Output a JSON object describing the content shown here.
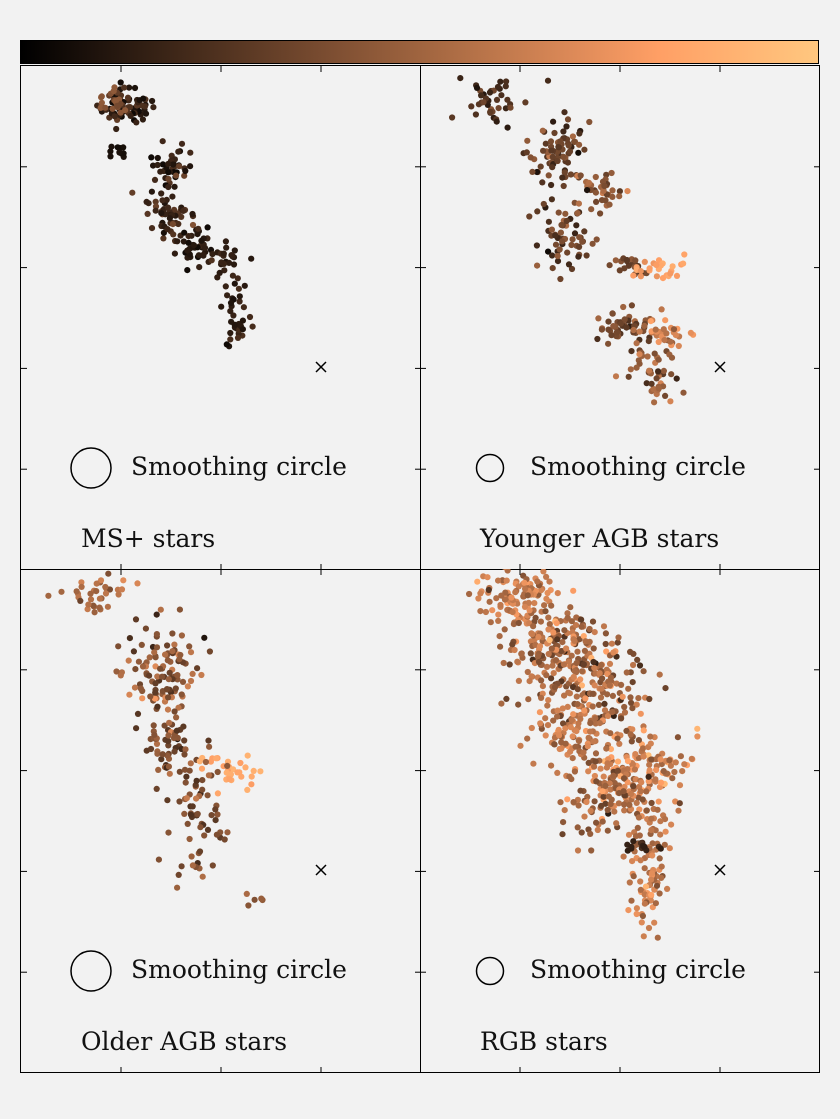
{
  "chart_data": {
    "type": "scatter",
    "colorbar": {
      "colormap": "copper",
      "orientation": "horizontal",
      "position": "top"
    },
    "grid": false,
    "panels": [
      {
        "label": "MS+ stars",
        "annotation": "Smoothing circle",
        "marker": "x",
        "smoothing_circle_size": "large",
        "color_range": [
          0.05,
          0.45
        ],
        "clumps": [
          {
            "cx": 0.26,
            "cy": 0.08,
            "sx": 0.035,
            "sy": 0.018,
            "n": 70,
            "c": 0.15,
            "cs": 0.15
          },
          {
            "cx": 0.23,
            "cy": 0.07,
            "sx": 0.02,
            "sy": 0.012,
            "n": 20,
            "c": 0.45,
            "cs": 0.15
          },
          {
            "cx": 0.24,
            "cy": 0.17,
            "sx": 0.015,
            "sy": 0.008,
            "n": 10,
            "c": 0.08,
            "cs": 0.05
          },
          {
            "cx": 0.38,
            "cy": 0.2,
            "sx": 0.025,
            "sy": 0.022,
            "n": 40,
            "c": 0.15,
            "cs": 0.15
          },
          {
            "cx": 0.38,
            "cy": 0.29,
            "sx": 0.03,
            "sy": 0.025,
            "n": 55,
            "c": 0.2,
            "cs": 0.15
          },
          {
            "cx": 0.43,
            "cy": 0.36,
            "sx": 0.025,
            "sy": 0.02,
            "n": 40,
            "c": 0.12,
            "cs": 0.1
          },
          {
            "cx": 0.51,
            "cy": 0.39,
            "sx": 0.02,
            "sy": 0.02,
            "n": 25,
            "c": 0.15,
            "cs": 0.1
          },
          {
            "cx": 0.53,
            "cy": 0.49,
            "sx": 0.02,
            "sy": 0.035,
            "n": 35,
            "c": 0.15,
            "cs": 0.1
          }
        ]
      },
      {
        "label": "Younger AGB stars",
        "annotation": "Smoothing circle",
        "marker": "x",
        "smoothing_circle_size": "small",
        "color_range": [
          0.05,
          0.9
        ],
        "clumps": [
          {
            "cx": 0.18,
            "cy": 0.08,
            "sx": 0.035,
            "sy": 0.022,
            "n": 40,
            "c": 0.25,
            "cs": 0.15
          },
          {
            "cx": 0.34,
            "cy": 0.17,
            "sx": 0.035,
            "sy": 0.035,
            "n": 80,
            "c": 0.3,
            "cs": 0.2
          },
          {
            "cx": 0.45,
            "cy": 0.25,
            "sx": 0.04,
            "sy": 0.02,
            "n": 40,
            "c": 0.45,
            "cs": 0.25
          },
          {
            "cx": 0.36,
            "cy": 0.34,
            "sx": 0.035,
            "sy": 0.035,
            "n": 60,
            "c": 0.3,
            "cs": 0.2
          },
          {
            "cx": 0.52,
            "cy": 0.4,
            "sx": 0.025,
            "sy": 0.01,
            "n": 20,
            "c": 0.3,
            "cs": 0.15
          },
          {
            "cx": 0.6,
            "cy": 0.4,
            "sx": 0.03,
            "sy": 0.012,
            "n": 25,
            "c": 0.8,
            "cs": 0.1
          },
          {
            "cx": 0.5,
            "cy": 0.52,
            "sx": 0.035,
            "sy": 0.02,
            "n": 45,
            "c": 0.35,
            "cs": 0.2
          },
          {
            "cx": 0.58,
            "cy": 0.6,
            "sx": 0.03,
            "sy": 0.04,
            "n": 55,
            "c": 0.45,
            "cs": 0.2
          },
          {
            "cx": 0.62,
            "cy": 0.53,
            "sx": 0.035,
            "sy": 0.015,
            "n": 30,
            "c": 0.65,
            "cs": 0.15
          }
        ]
      },
      {
        "label": "Older AGB stars",
        "annotation": "Smoothing circle",
        "marker": "x",
        "smoothing_circle_size": "large",
        "color_range": [
          0.1,
          0.9
        ],
        "clumps": [
          {
            "cx": 0.2,
            "cy": 0.05,
            "sx": 0.035,
            "sy": 0.02,
            "n": 35,
            "c": 0.55,
            "cs": 0.15
          },
          {
            "cx": 0.35,
            "cy": 0.2,
            "sx": 0.045,
            "sy": 0.05,
            "n": 110,
            "c": 0.45,
            "cs": 0.25
          },
          {
            "cx": 0.38,
            "cy": 0.34,
            "sx": 0.035,
            "sy": 0.04,
            "n": 60,
            "c": 0.35,
            "cs": 0.25
          },
          {
            "cx": 0.52,
            "cy": 0.4,
            "sx": 0.03,
            "sy": 0.02,
            "n": 30,
            "c": 0.85,
            "cs": 0.1
          },
          {
            "cx": 0.45,
            "cy": 0.5,
            "sx": 0.035,
            "sy": 0.06,
            "n": 60,
            "c": 0.4,
            "cs": 0.2
          },
          {
            "cx": 0.59,
            "cy": 0.66,
            "sx": 0.01,
            "sy": 0.01,
            "n": 5,
            "c": 0.45,
            "cs": 0.1
          }
        ]
      },
      {
        "label": "RGB stars",
        "annotation": "Smoothing circle",
        "marker": "x",
        "smoothing_circle_size": "small",
        "color_range": [
          0.15,
          0.95
        ],
        "clumps": [
          {
            "cx": 0.24,
            "cy": 0.05,
            "sx": 0.05,
            "sy": 0.025,
            "n": 110,
            "c": 0.6,
            "cs": 0.2
          },
          {
            "cx": 0.33,
            "cy": 0.16,
            "sx": 0.06,
            "sy": 0.05,
            "n": 180,
            "c": 0.55,
            "cs": 0.25
          },
          {
            "cx": 0.45,
            "cy": 0.24,
            "sx": 0.06,
            "sy": 0.05,
            "n": 170,
            "c": 0.5,
            "cs": 0.3
          },
          {
            "cx": 0.37,
            "cy": 0.32,
            "sx": 0.04,
            "sy": 0.04,
            "n": 80,
            "c": 0.6,
            "cs": 0.2
          },
          {
            "cx": 0.55,
            "cy": 0.4,
            "sx": 0.06,
            "sy": 0.04,
            "n": 150,
            "c": 0.65,
            "cs": 0.25
          },
          {
            "cx": 0.45,
            "cy": 0.46,
            "sx": 0.05,
            "sy": 0.04,
            "n": 90,
            "c": 0.5,
            "cs": 0.25
          },
          {
            "cx": 0.58,
            "cy": 0.52,
            "sx": 0.03,
            "sy": 0.04,
            "n": 50,
            "c": 0.55,
            "cs": 0.2
          },
          {
            "cx": 0.58,
            "cy": 0.6,
            "sx": 0.01,
            "sy": 0.025,
            "n": 12,
            "c": 0.55,
            "cs": 0.1
          },
          {
            "cx": 0.55,
            "cy": 0.55,
            "sx": 0.03,
            "sy": 0.006,
            "n": 14,
            "c": 0.15,
            "cs": 0.1
          },
          {
            "cx": 0.57,
            "cy": 0.65,
            "sx": 0.03,
            "sy": 0.03,
            "n": 45,
            "c": 0.65,
            "cs": 0.2
          }
        ]
      }
    ]
  }
}
